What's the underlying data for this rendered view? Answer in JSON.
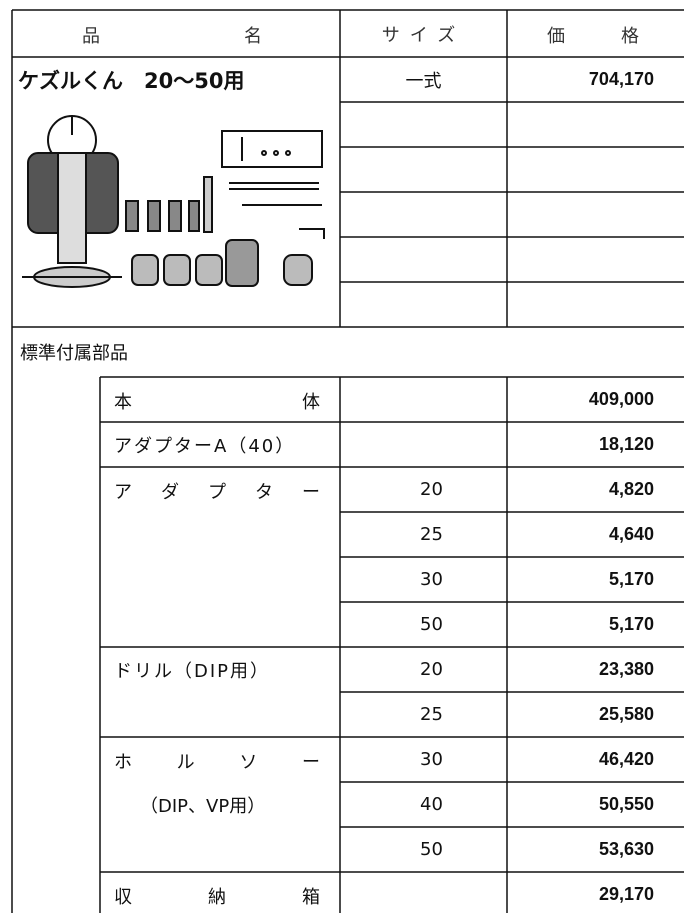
{
  "header": {
    "name": "品名",
    "size": "サイズ",
    "price": "価格"
  },
  "product": {
    "name": "ケズルくん　20〜50用",
    "size": "一式",
    "price": "704,170"
  },
  "section": "標準付属部品",
  "groups": [
    {
      "name": "本体",
      "entries": [
        {
          "price": "409,000"
        }
      ]
    },
    {
      "name": "アダプターA（40）",
      "entries": [
        {
          "price": "18,120"
        }
      ]
    },
    {
      "name": "アダプター",
      "entries": [
        {
          "size": "20",
          "price": "4,820"
        },
        {
          "size": "25",
          "price": "4,640"
        },
        {
          "size": "30",
          "price": "5,170"
        },
        {
          "size": "50",
          "price": "5,170"
        }
      ]
    },
    {
      "name": "ドリル（DIP用）",
      "entries": [
        {
          "size": "20",
          "price": "23,380"
        },
        {
          "size": "25",
          "price": "25,580"
        }
      ]
    },
    {
      "name": "ホルソー",
      "sub": "（DIP、VP用）",
      "entries": [
        {
          "size": "30",
          "price": "46,420"
        },
        {
          "size": "40",
          "price": "50,550"
        },
        {
          "size": "50",
          "price": "53,630"
        }
      ]
    },
    {
      "name": "収納箱",
      "entries": [
        {
          "price": "29,170"
        }
      ]
    }
  ]
}
